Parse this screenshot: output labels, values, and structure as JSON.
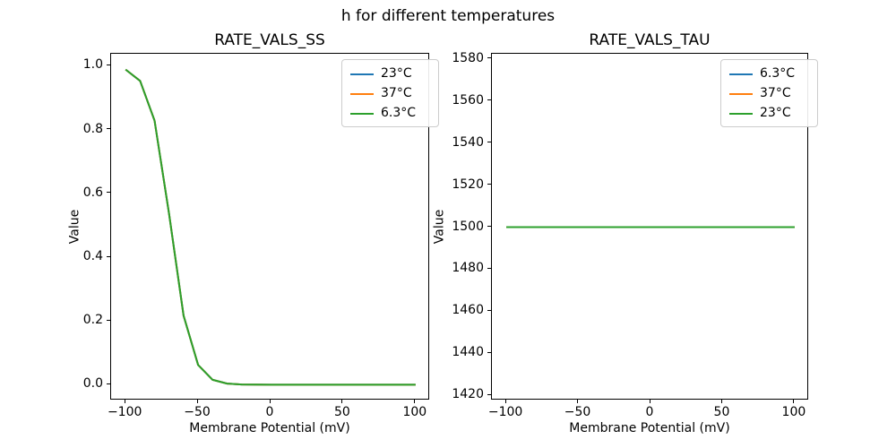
{
  "figure": {
    "suptitle": "h for different temperatures",
    "background": "#ffffff"
  },
  "palette": {
    "blue": "#1f77b4",
    "orange": "#ff7f0e",
    "green": "#2ca02c"
  },
  "chart_data": [
    {
      "type": "line",
      "title": "RATE_VALS_SS",
      "xlabel": "Membrane Potential (mV)",
      "ylabel": "Value",
      "grid": false,
      "legend_position": "upper right",
      "xlim": [
        -110,
        110
      ],
      "ylim": [
        -0.0494,
        1.0376
      ],
      "xticks": [
        -100,
        -50,
        0,
        50,
        100
      ],
      "xticklabels": [
        "−100",
        "−50",
        "0",
        "50",
        "100"
      ],
      "yticks": [
        0.0,
        0.2,
        0.4,
        0.6,
        0.8,
        1.0
      ],
      "yticklabels": [
        "0.0",
        "0.2",
        "0.4",
        "0.6",
        "0.8",
        "1.0"
      ],
      "x": [
        -100,
        -90,
        -80,
        -70,
        -60,
        -50,
        -40,
        -30,
        -20,
        -10,
        0,
        10,
        20,
        30,
        40,
        50,
        60,
        70,
        80,
        90,
        100
      ],
      "series": [
        {
          "name": "23°C",
          "color": "#1f77b4",
          "values": [
            0.9882,
            0.9526,
            0.828,
            0.5357,
            0.2166,
            0.0621,
            0.0156,
            0.0038,
            0.0009,
            0.0002,
            0.0001,
            0,
            0,
            0,
            0,
            0,
            0,
            0,
            0,
            0,
            0
          ]
        },
        {
          "name": "37°C",
          "color": "#ff7f0e",
          "values": [
            0.9882,
            0.9526,
            0.828,
            0.5357,
            0.2166,
            0.0621,
            0.0156,
            0.0038,
            0.0009,
            0.0002,
            0.0001,
            0,
            0,
            0,
            0,
            0,
            0,
            0,
            0,
            0,
            0
          ]
        },
        {
          "name": "6.3°C",
          "color": "#2ca02c",
          "values": [
            0.9882,
            0.9526,
            0.828,
            0.5357,
            0.2166,
            0.0621,
            0.0156,
            0.0038,
            0.0009,
            0.0002,
            0.0001,
            0,
            0,
            0,
            0,
            0,
            0,
            0,
            0,
            0,
            0
          ]
        }
      ]
    },
    {
      "type": "line",
      "title": "RATE_VALS_TAU",
      "xlabel": "Membrane Potential (mV)",
      "ylabel": "Value",
      "grid": false,
      "legend_position": "upper right",
      "xlim": [
        -110,
        110
      ],
      "ylim": [
        1417.5,
        1582.5
      ],
      "xticks": [
        -100,
        -50,
        0,
        50,
        100
      ],
      "xticklabels": [
        "−100",
        "−50",
        "0",
        "50",
        "100"
      ],
      "yticks": [
        1420,
        1440,
        1460,
        1480,
        1500,
        1520,
        1540,
        1560,
        1580
      ],
      "yticklabels": [
        "1420",
        "1440",
        "1460",
        "1480",
        "1500",
        "1520",
        "1540",
        "1560",
        "1580"
      ],
      "x": [
        -100,
        -90,
        -80,
        -70,
        -60,
        -50,
        -40,
        -30,
        -20,
        -10,
        0,
        10,
        20,
        30,
        40,
        50,
        60,
        70,
        80,
        90,
        100
      ],
      "series": [
        {
          "name": "6.3°C",
          "color": "#1f77b4",
          "values": [
            1500,
            1500,
            1500,
            1500,
            1500,
            1500,
            1500,
            1500,
            1500,
            1500,
            1500,
            1500,
            1500,
            1500,
            1500,
            1500,
            1500,
            1500,
            1500,
            1500,
            1500
          ]
        },
        {
          "name": "37°C",
          "color": "#ff7f0e",
          "values": [
            1500,
            1500,
            1500,
            1500,
            1500,
            1500,
            1500,
            1500,
            1500,
            1500,
            1500,
            1500,
            1500,
            1500,
            1500,
            1500,
            1500,
            1500,
            1500,
            1500,
            1500
          ]
        },
        {
          "name": "23°C",
          "color": "#2ca02c",
          "values": [
            1500,
            1500,
            1500,
            1500,
            1500,
            1500,
            1500,
            1500,
            1500,
            1500,
            1500,
            1500,
            1500,
            1500,
            1500,
            1500,
            1500,
            1500,
            1500,
            1500,
            1500
          ]
        }
      ]
    }
  ]
}
